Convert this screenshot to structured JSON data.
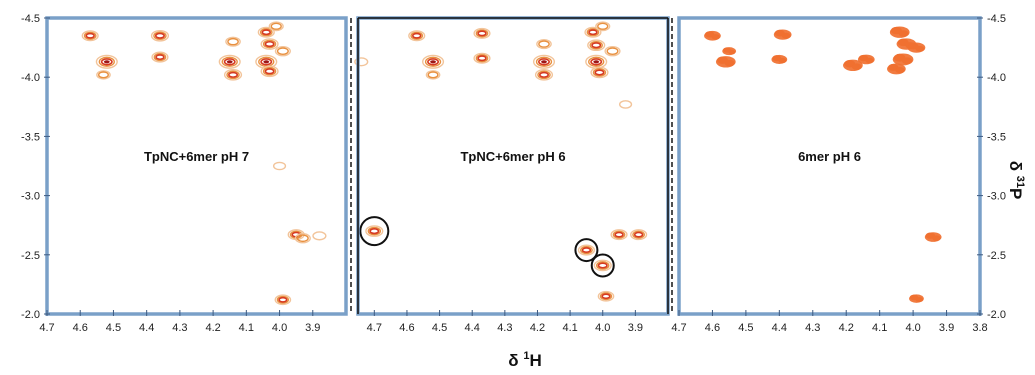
{
  "chart_data": {
    "type": "scatter",
    "chart_kind": "2D NMR correlation spectra (1H-31P)",
    "x_axis": {
      "label": "δ",
      "label_sup": "1",
      "label_nucleus": "H",
      "reversed": true
    },
    "y_axis": {
      "label": "δ",
      "label_sup": "31",
      "label_nucleus": "P",
      "reversed": true,
      "ylim": [
        -4.5,
        -2.0
      ],
      "ticks": [
        "-4.5",
        "-4.0",
        "-3.5",
        "-3.0",
        "-2.5",
        "-2.0"
      ]
    },
    "panels": [
      {
        "title": "TpNC+6mer pH 7",
        "xlim": [
          4.7,
          3.8
        ],
        "x_ticks": [
          "4.7",
          "4.6",
          "4.5",
          "4.4",
          "4.3",
          "4.2",
          "4.1",
          "4.0",
          "3.9"
        ],
        "style": "contour",
        "peaks": [
          {
            "x": 4.57,
            "y": -4.35,
            "i": 0.5
          },
          {
            "x": 4.52,
            "y": -4.13,
            "i": 1.0
          },
          {
            "x": 4.53,
            "y": -4.02,
            "i": 0.25
          },
          {
            "x": 4.36,
            "y": -4.35,
            "i": 0.6
          },
          {
            "x": 4.36,
            "y": -4.17,
            "i": 0.5
          },
          {
            "x": 4.15,
            "y": -4.13,
            "i": 1.0
          },
          {
            "x": 4.14,
            "y": -4.02,
            "i": 0.6
          },
          {
            "x": 4.14,
            "y": -4.3,
            "i": 0.35
          },
          {
            "x": 4.04,
            "y": -4.38,
            "i": 0.5
          },
          {
            "x": 4.03,
            "y": -4.28,
            "i": 0.6
          },
          {
            "x": 4.04,
            "y": -4.13,
            "i": 1.0
          },
          {
            "x": 4.03,
            "y": -4.05,
            "i": 0.6
          },
          {
            "x": 4.01,
            "y": -4.43,
            "i": 0.3
          },
          {
            "x": 3.99,
            "y": -4.22,
            "i": 0.4
          },
          {
            "x": 3.95,
            "y": -2.67,
            "i": 0.5
          },
          {
            "x": 3.93,
            "y": -2.64,
            "i": 0.4
          },
          {
            "x": 3.88,
            "y": -2.66,
            "i": 0.2
          },
          {
            "x": 3.99,
            "y": -2.12,
            "i": 0.45
          },
          {
            "x": 4.0,
            "y": -3.25,
            "i": 0.1
          }
        ]
      },
      {
        "title": "TpNC+6mer pH 6",
        "xlim": [
          4.75,
          3.8
        ],
        "x_ticks": [
          "4.7",
          "4.6",
          "4.5",
          "4.4",
          "4.3",
          "4.2",
          "4.1",
          "4.0",
          "3.9"
        ],
        "style": "contour",
        "peaks": [
          {
            "x": 4.57,
            "y": -4.35,
            "i": 0.5
          },
          {
            "x": 4.52,
            "y": -4.13,
            "i": 1.0
          },
          {
            "x": 4.52,
            "y": -4.02,
            "i": 0.25
          },
          {
            "x": 4.37,
            "y": -4.37,
            "i": 0.5
          },
          {
            "x": 4.37,
            "y": -4.16,
            "i": 0.5
          },
          {
            "x": 4.18,
            "y": -4.13,
            "i": 1.0
          },
          {
            "x": 4.18,
            "y": -4.02,
            "i": 0.6
          },
          {
            "x": 4.18,
            "y": -4.28,
            "i": 0.35
          },
          {
            "x": 4.03,
            "y": -4.38,
            "i": 0.5
          },
          {
            "x": 4.02,
            "y": -4.27,
            "i": 0.6
          },
          {
            "x": 4.02,
            "y": -4.13,
            "i": 1.0
          },
          {
            "x": 4.01,
            "y": -4.04,
            "i": 0.6
          },
          {
            "x": 4.0,
            "y": -4.43,
            "i": 0.3
          },
          {
            "x": 3.97,
            "y": -4.22,
            "i": 0.4
          },
          {
            "x": 4.7,
            "y": -2.7,
            "i": 0.6
          },
          {
            "x": 4.05,
            "y": -2.54,
            "i": 0.5
          },
          {
            "x": 4.0,
            "y": -2.41,
            "i": 0.6
          },
          {
            "x": 3.95,
            "y": -2.67,
            "i": 0.5
          },
          {
            "x": 3.89,
            "y": -2.67,
            "i": 0.5
          },
          {
            "x": 3.99,
            "y": -2.15,
            "i": 0.45
          },
          {
            "x": 4.74,
            "y": -4.13,
            "i": 0.2
          },
          {
            "x": 3.93,
            "y": -3.77,
            "i": 0.1
          }
        ],
        "highlighted_peaks": [
          {
            "x": 4.7,
            "y": -2.7
          },
          {
            "x": 4.05,
            "y": -2.54
          },
          {
            "x": 4.0,
            "y": -2.41
          }
        ]
      },
      {
        "title": "6mer pH 6",
        "xlim": [
          4.7,
          3.8
        ],
        "x_ticks": [
          "4.7",
          "4.6",
          "4.5",
          "4.4",
          "4.3",
          "4.2",
          "4.1",
          "4.0",
          "3.9",
          "3.8"
        ],
        "style": "filled",
        "peaks": [
          {
            "x": 4.6,
            "y": -4.35,
            "i": 0.6
          },
          {
            "x": 4.56,
            "y": -4.13,
            "i": 0.9
          },
          {
            "x": 4.55,
            "y": -4.22,
            "i": 0.3
          },
          {
            "x": 4.39,
            "y": -4.36,
            "i": 0.7
          },
          {
            "x": 4.4,
            "y": -4.15,
            "i": 0.5
          },
          {
            "x": 4.18,
            "y": -4.1,
            "i": 0.9
          },
          {
            "x": 4.14,
            "y": -4.15,
            "i": 0.6
          },
          {
            "x": 4.04,
            "y": -4.38,
            "i": 0.9
          },
          {
            "x": 4.02,
            "y": -4.28,
            "i": 0.9
          },
          {
            "x": 4.03,
            "y": -4.15,
            "i": 1.0
          },
          {
            "x": 4.05,
            "y": -4.07,
            "i": 0.8
          },
          {
            "x": 3.99,
            "y": -4.25,
            "i": 0.7
          },
          {
            "x": 3.94,
            "y": -2.65,
            "i": 0.6
          },
          {
            "x": 3.99,
            "y": -2.13,
            "i": 0.4
          }
        ]
      }
    ],
    "colors": {
      "frame": "#7aa0c8",
      "contour_outer": "#f2c49a",
      "contour_mid": "#e8903f",
      "contour_inner": "#d63a22",
      "contour_core": "#9e1616",
      "filled": "#f07030"
    }
  }
}
